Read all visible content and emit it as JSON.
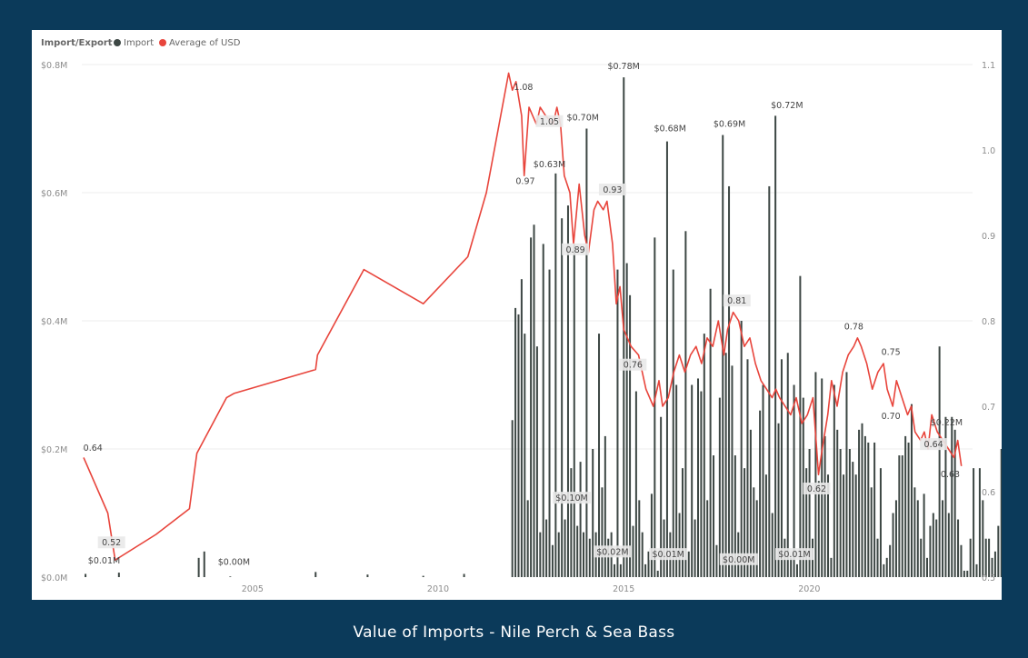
{
  "caption": "Value of Imports - Nile Perch & Sea Bass",
  "legend": {
    "title": "Import/Export",
    "items": [
      {
        "label": "Import",
        "color": "#3d4744"
      },
      {
        "label": "Average of USD",
        "color": "#e8453c"
      }
    ]
  },
  "chart_data": {
    "type": "bar+line",
    "x_range": [
      2000.4,
      2024.4
    ],
    "x_ticks": [
      {
        "value": 2005,
        "label": "2005"
      },
      {
        "value": 2010,
        "label": "2010"
      },
      {
        "value": 2015,
        "label": "2015"
      },
      {
        "value": 2020,
        "label": "2020"
      }
    ],
    "y_left": {
      "range": [
        0,
        0.8
      ],
      "ticks": [
        {
          "value": 0,
          "label": "$0.0M"
        },
        {
          "value": 0.2,
          "label": "$0.2M"
        },
        {
          "value": 0.4,
          "label": "$0.4M"
        },
        {
          "value": 0.6,
          "label": "$0.6M"
        },
        {
          "value": 0.8,
          "label": "$0.8M"
        }
      ]
    },
    "y_right": {
      "range": [
        0.5,
        1.1
      ],
      "ticks": [
        {
          "value": 0.5,
          "label": "0.5"
        },
        {
          "value": 0.6,
          "label": "0.6"
        },
        {
          "value": 0.7,
          "label": "0.7"
        },
        {
          "value": 0.8,
          "label": "0.8"
        },
        {
          "value": 0.9,
          "label": "0.9"
        },
        {
          "value": 1.0,
          "label": "1.0"
        },
        {
          "value": 1.1,
          "label": "1.1"
        }
      ]
    },
    "gridlines": true,
    "legend_position": "top-left",
    "bar_series": {
      "name": "Import",
      "color": "#3d4744",
      "bar_width_years": 0.045,
      "early": [
        [
          2000.5,
          0.005
        ],
        [
          2001.4,
          0.007
        ],
        [
          2003.55,
          0.03
        ],
        [
          2003.7,
          0.04
        ],
        [
          2004.4,
          0.001
        ],
        [
          2006.7,
          0.008
        ],
        [
          2008.1,
          0.004
        ],
        [
          2009.6,
          0.002
        ],
        [
          2010.7,
          0.005
        ]
      ],
      "monthly_start": 2012.0,
      "monthly_step": 0.0834,
      "monthly_values": [
        0.245,
        0.42,
        0.41,
        0.465,
        0.38,
        0.12,
        0.53,
        0.55,
        0.36,
        0.07,
        0.52,
        0.09,
        0.48,
        0.05,
        0.63,
        0.07,
        0.56,
        0.09,
        0.58,
        0.17,
        0.52,
        0.08,
        0.18,
        0.07,
        0.7,
        0.06,
        0.2,
        0.07,
        0.38,
        0.14,
        0.22,
        0.06,
        0.07,
        0.02,
        0.48,
        0.02,
        0.78,
        0.49,
        0.44,
        0.08,
        0.29,
        0.12,
        0.07,
        0.02,
        0.04,
        0.13,
        0.53,
        0.01,
        0.25,
        0.09,
        0.68,
        0.07,
        0.48,
        0.3,
        0.1,
        0.17,
        0.54,
        0.04,
        0.3,
        0.09,
        0.31,
        0.29,
        0.38,
        0.12,
        0.45,
        0.19,
        0.05,
        0.28,
        0.69,
        0.35,
        0.61,
        0.33,
        0.19,
        0.07,
        0.4,
        0.17,
        0.34,
        0.23,
        0.14,
        0.12,
        0.26,
        0.3,
        0.16,
        0.61,
        0.1,
        0.72,
        0.24,
        0.34,
        0.06,
        0.35,
        0.03,
        0.3,
        0.02,
        0.47,
        0.28,
        0.17,
        0.2,
        0.06,
        0.32,
        0.15,
        0.31,
        0.22,
        0.16,
        0.03,
        0.3,
        0.23,
        0.2,
        0.16,
        0.32,
        0.2,
        0.18,
        0.16,
        0.23,
        0.24,
        0.22,
        0.21,
        0.14,
        0.21,
        0.06,
        0.17,
        0.02,
        0.03,
        0.05,
        0.1,
        0.12,
        0.19,
        0.19,
        0.22,
        0.21,
        0.27,
        0.14,
        0.12,
        0.06,
        0.13,
        0.03,
        0.08,
        0.1,
        0.09,
        0.36,
        0.12,
        0.25,
        0.1,
        0.25,
        0.23,
        0.09,
        0.05,
        0.01,
        0.01,
        0.06,
        0.17,
        0.02,
        0.17,
        0.12,
        0.06,
        0.06,
        0.03,
        0.04,
        0.08,
        0.2,
        0.07,
        0.21,
        0.01,
        0.01,
        0.07,
        0.22,
        0.08
      ]
    },
    "line_series": {
      "name": "Average of USD",
      "color": "#e8453c",
      "points": [
        [
          2000.45,
          0.64
        ],
        [
          2001.1,
          0.575
        ],
        [
          2001.3,
          0.52
        ],
        [
          2002.4,
          0.55
        ],
        [
          2003.3,
          0.58
        ],
        [
          2003.5,
          0.645
        ],
        [
          2004.3,
          0.71
        ],
        [
          2004.5,
          0.715
        ],
        [
          2006.7,
          0.743
        ],
        [
          2006.75,
          0.76
        ],
        [
          2008.0,
          0.86
        ],
        [
          2009.6,
          0.82
        ],
        [
          2010.8,
          0.875
        ],
        [
          2011.3,
          0.95
        ],
        [
          2011.9,
          1.09
        ],
        [
          2012.0,
          1.07
        ],
        [
          2012.1,
          1.08
        ],
        [
          2012.25,
          1.04
        ],
        [
          2012.32,
          0.97
        ],
        [
          2012.45,
          1.05
        ],
        [
          2012.55,
          1.04
        ],
        [
          2012.65,
          1.03
        ],
        [
          2012.75,
          1.05
        ],
        [
          2012.9,
          1.04
        ],
        [
          2013.1,
          1.03
        ],
        [
          2013.2,
          1.05
        ],
        [
          2013.3,
          1.03
        ],
        [
          2013.4,
          0.97
        ],
        [
          2013.55,
          0.95
        ],
        [
          2013.65,
          0.89
        ],
        [
          2013.8,
          0.96
        ],
        [
          2013.95,
          0.9
        ],
        [
          2014.05,
          0.88
        ],
        [
          2014.2,
          0.93
        ],
        [
          2014.3,
          0.94
        ],
        [
          2014.45,
          0.93
        ],
        [
          2014.55,
          0.94
        ],
        [
          2014.7,
          0.89
        ],
        [
          2014.8,
          0.82
        ],
        [
          2014.9,
          0.84
        ],
        [
          2015.0,
          0.79
        ],
        [
          2015.2,
          0.77
        ],
        [
          2015.4,
          0.76
        ],
        [
          2015.5,
          0.74
        ],
        [
          2015.6,
          0.72
        ],
        [
          2015.8,
          0.7
        ],
        [
          2015.95,
          0.73
        ],
        [
          2016.05,
          0.7
        ],
        [
          2016.2,
          0.71
        ],
        [
          2016.35,
          0.74
        ],
        [
          2016.5,
          0.76
        ],
        [
          2016.65,
          0.74
        ],
        [
          2016.8,
          0.76
        ],
        [
          2016.95,
          0.77
        ],
        [
          2017.1,
          0.75
        ],
        [
          2017.25,
          0.78
        ],
        [
          2017.4,
          0.77
        ],
        [
          2017.55,
          0.8
        ],
        [
          2017.7,
          0.76
        ],
        [
          2017.8,
          0.79
        ],
        [
          2017.95,
          0.81
        ],
        [
          2018.1,
          0.8
        ],
        [
          2018.25,
          0.77
        ],
        [
          2018.4,
          0.78
        ],
        [
          2018.55,
          0.75
        ],
        [
          2018.7,
          0.73
        ],
        [
          2018.85,
          0.72
        ],
        [
          2019.0,
          0.71
        ],
        [
          2019.1,
          0.72
        ],
        [
          2019.2,
          0.71
        ],
        [
          2019.35,
          0.7
        ],
        [
          2019.5,
          0.69
        ],
        [
          2019.65,
          0.71
        ],
        [
          2019.8,
          0.68
        ],
        [
          2019.95,
          0.69
        ],
        [
          2020.1,
          0.71
        ],
        [
          2020.2,
          0.65
        ],
        [
          2020.25,
          0.62
        ],
        [
          2020.35,
          0.65
        ],
        [
          2020.5,
          0.69
        ],
        [
          2020.6,
          0.73
        ],
        [
          2020.75,
          0.7
        ],
        [
          2020.9,
          0.74
        ],
        [
          2021.05,
          0.76
        ],
        [
          2021.2,
          0.77
        ],
        [
          2021.3,
          0.78
        ],
        [
          2021.4,
          0.77
        ],
        [
          2021.55,
          0.75
        ],
        [
          2021.7,
          0.72
        ],
        [
          2021.85,
          0.74
        ],
        [
          2022.0,
          0.75
        ],
        [
          2022.1,
          0.72
        ],
        [
          2022.25,
          0.7
        ],
        [
          2022.35,
          0.73
        ],
        [
          2022.5,
          0.71
        ],
        [
          2022.65,
          0.69
        ],
        [
          2022.75,
          0.7
        ],
        [
          2022.85,
          0.67
        ],
        [
          2023.0,
          0.66
        ],
        [
          2023.1,
          0.67
        ],
        [
          2023.2,
          0.65
        ],
        [
          2023.3,
          0.69
        ],
        [
          2023.45,
          0.67
        ],
        [
          2023.6,
          0.66
        ],
        [
          2023.75,
          0.65
        ],
        [
          2023.9,
          0.64
        ],
        [
          2024.0,
          0.66
        ],
        [
          2024.1,
          0.63
        ]
      ]
    },
    "data_labels": [
      {
        "text": "$0.78M",
        "x": 2015.0,
        "y_left": 0.793,
        "boxed": false
      },
      {
        "text": "$0.70M",
        "x": 2013.9,
        "y_left": 0.713,
        "boxed": false
      },
      {
        "text": "$0.68M",
        "x": 2016.25,
        "y_left": 0.696,
        "boxed": false
      },
      {
        "text": "$0.69M",
        "x": 2017.85,
        "y_left": 0.703,
        "boxed": false
      },
      {
        "text": "$0.72M",
        "x": 2019.4,
        "y_left": 0.732,
        "boxed": false
      },
      {
        "text": "$0.63M",
        "x": 2013.0,
        "y_left": 0.64,
        "boxed": false
      },
      {
        "text": "$0.01M",
        "x": 2001.0,
        "y_left": 0.021,
        "boxed": false
      },
      {
        "text": "$0.00M",
        "x": 2004.5,
        "y_left": 0.019,
        "boxed": false
      },
      {
        "text": "$0.22M",
        "x": 2023.7,
        "y_left": 0.237,
        "boxed": false
      },
      {
        "text": "$0.10M",
        "x": 2013.6,
        "y_left": 0.119,
        "boxed": true
      },
      {
        "text": "$0.02M",
        "x": 2014.7,
        "y_left": 0.035,
        "boxed": true
      },
      {
        "text": "$0.01M",
        "x": 2016.2,
        "y_left": 0.031,
        "boxed": true
      },
      {
        "text": "$0.00M",
        "x": 2018.1,
        "y_left": 0.023,
        "boxed": true
      },
      {
        "text": "$0.01M",
        "x": 2019.6,
        "y_left": 0.031,
        "boxed": true
      },
      {
        "text": "0.64",
        "x": 2000.7,
        "y_right": 0.648,
        "boxed": false
      },
      {
        "text": "0.52",
        "x": 2001.2,
        "y_right": 0.537,
        "boxed": true
      },
      {
        "text": "1.08",
        "x": 2012.3,
        "y_right": 1.07,
        "boxed": false
      },
      {
        "text": "1.05",
        "x": 2013.0,
        "y_right": 1.03,
        "boxed": true
      },
      {
        "text": "0.97",
        "x": 2012.35,
        "y_right": 0.96,
        "boxed": false
      },
      {
        "text": "0.93",
        "x": 2014.7,
        "y_right": 0.95,
        "boxed": true
      },
      {
        "text": "0.89",
        "x": 2013.7,
        "y_right": 0.88,
        "boxed": true
      },
      {
        "text": "0.81",
        "x": 2018.05,
        "y_right": 0.82,
        "boxed": true
      },
      {
        "text": "0.76",
        "x": 2015.25,
        "y_right": 0.745,
        "boxed": true
      },
      {
        "text": "0.78",
        "x": 2021.2,
        "y_right": 0.79,
        "boxed": false
      },
      {
        "text": "0.75",
        "x": 2022.2,
        "y_right": 0.76,
        "boxed": false
      },
      {
        "text": "0.70",
        "x": 2022.2,
        "y_right": 0.685,
        "boxed": false
      },
      {
        "text": "0.64",
        "x": 2023.35,
        "y_right": 0.652,
        "boxed": true
      },
      {
        "text": "0.63",
        "x": 2023.8,
        "y_right": 0.617,
        "boxed": false
      },
      {
        "text": "0.62",
        "x": 2020.2,
        "y_right": 0.6,
        "boxed": true
      }
    ]
  }
}
